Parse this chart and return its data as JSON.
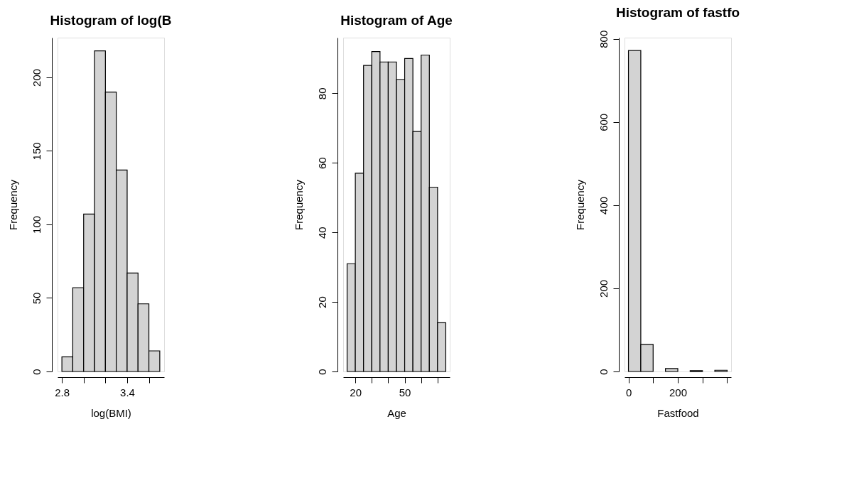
{
  "chart_data": [
    {
      "type": "histogram",
      "title": "Histogram of log(B",
      "xlabel": "log(BMI)",
      "ylabel": "Frequency",
      "color": "#d3d3d3",
      "bins": [
        2.8,
        2.9,
        3.0,
        3.1,
        3.2,
        3.3,
        3.4,
        3.5,
        3.6,
        3.7
      ],
      "values": [
        10,
        57,
        107,
        218,
        190,
        137,
        67,
        46,
        14
      ],
      "xlim": [
        2.76,
        3.74
      ],
      "ylim": [
        0,
        227
      ],
      "xticks": [
        2.8,
        {
          "value": 3.0,
          "label": null
        },
        {
          "value": 3.2,
          "label": null
        },
        3.4,
        {
          "value": 3.6,
          "label": null
        }
      ],
      "yticks": [
        0,
        50,
        100,
        150,
        200
      ]
    },
    {
      "type": "histogram",
      "title": "Histogram of Age",
      "xlabel": "Age",
      "ylabel": "Frequency",
      "color": "#d3d3d3",
      "bins": [
        15,
        20,
        25,
        30,
        35,
        40,
        45,
        50,
        55,
        60,
        65,
        70,
        75
      ],
      "values": [
        31,
        57,
        88,
        92,
        89,
        89,
        84,
        90,
        69,
        91,
        53,
        14
      ],
      "xlim": [
        12.6,
        77.4
      ],
      "ylim": [
        0,
        96
      ],
      "xticks": [
        20,
        {
          "value": 30,
          "label": null
        },
        {
          "value": 40,
          "label": null
        },
        50,
        {
          "value": 60,
          "label": null
        },
        {
          "value": 70,
          "label": null
        }
      ],
      "yticks": [
        0,
        20,
        40,
        60,
        80
      ]
    },
    {
      "type": "histogram",
      "title": "Histogram of fastfo",
      "xlabel": "Fastfood",
      "ylabel": "Frequency",
      "color": "#d3d3d3",
      "bins": [
        0,
        50,
        100,
        150,
        200,
        250,
        300,
        350,
        400
      ],
      "values": [
        772,
        65,
        0,
        7,
        0,
        2,
        0,
        3
      ],
      "xlim": [
        -16,
        416
      ],
      "ylim": [
        0,
        803
      ],
      "xticks": [
        0,
        {
          "value": 100,
          "label": null
        },
        200,
        {
          "value": 300,
          "label": null
        },
        {
          "value": 400,
          "label": null
        }
      ],
      "yticks": [
        0,
        200,
        400,
        600,
        800
      ]
    }
  ]
}
